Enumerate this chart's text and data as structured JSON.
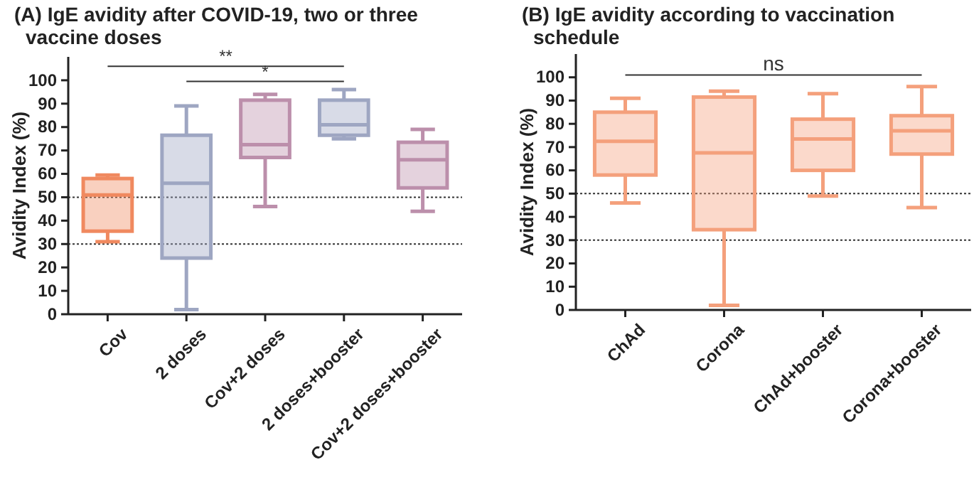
{
  "chart_data": [
    {
      "type": "box",
      "title": "(A) IgE avidity after COVID-19, two or three vaccine doses",
      "ylabel": "Avidity Index (%)",
      "categories": [
        "Cov",
        "2 doses",
        "Cov+2 doses",
        "2 doses+booster",
        "Cov+2 doses+booster"
      ],
      "boxes": [
        {
          "low": 31,
          "q1": 35.5,
          "median": 51,
          "q3": 58,
          "high": 59.5
        },
        {
          "low": 2,
          "q1": 24,
          "median": 56,
          "q3": 76.5,
          "high": 89
        },
        {
          "low": 46,
          "q1": 67,
          "median": 72.5,
          "q3": 91.5,
          "high": 94
        },
        {
          "low": 75,
          "q1": 76.5,
          "median": 81,
          "q3": 91.5,
          "high": 96
        },
        {
          "low": 44,
          "q1": 54,
          "median": 66,
          "q3": 73.5,
          "high": 79
        }
      ],
      "colors": [
        "#f0895f",
        "#9ea6c2",
        "#bc8fab",
        "#9ea6c2",
        "#bc8fab"
      ],
      "ylim": [
        0,
        110
      ],
      "yticks": [
        0,
        10,
        20,
        30,
        40,
        50,
        60,
        70,
        80,
        90,
        100
      ],
      "ref_lines": [
        {
          "axis": "y",
          "value": 50,
          "line_style": "dotted"
        },
        {
          "axis": "y",
          "value": 30,
          "line_style": "dotted"
        }
      ],
      "annotations": [
        "**",
        "*"
      ],
      "grid": false
    },
    {
      "type": "box",
      "title": "(B) IgE avidity according to vaccination schedule",
      "ylabel": "Avidity Index (%)",
      "categories": [
        "ChAd",
        "Corona",
        "ChAd+booster",
        "Corona+booster"
      ],
      "boxes": [
        {
          "low": 46,
          "q1": 58,
          "median": 72.5,
          "q3": 85,
          "high": 91
        },
        {
          "low": 2,
          "q1": 34.5,
          "median": 67.5,
          "q3": 91.5,
          "high": 94
        },
        {
          "low": 49,
          "q1": 60,
          "median": 73.5,
          "q3": 82,
          "high": 93
        },
        {
          "low": 44,
          "q1": 67,
          "median": 77,
          "q3": 83.5,
          "high": 96
        }
      ],
      "colors": [
        "#f4a07c",
        "#f4a07c",
        "#f4a07c",
        "#f4a07c"
      ],
      "ylim": [
        0,
        110
      ],
      "yticks": [
        0,
        10,
        20,
        30,
        40,
        50,
        60,
        70,
        80,
        90,
        100
      ],
      "ref_lines": [
        {
          "axis": "y",
          "value": 50,
          "line_style": "dotted"
        },
        {
          "axis": "y",
          "value": 30,
          "line_style": "dotted"
        }
      ],
      "annotations": [
        "ns"
      ],
      "grid": false
    }
  ]
}
